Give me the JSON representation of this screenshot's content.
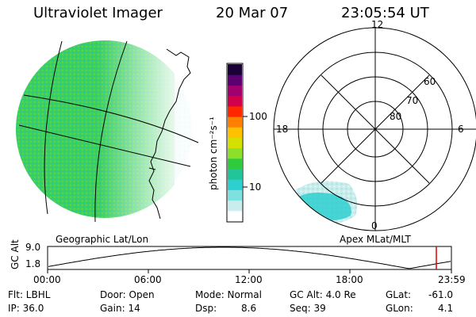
{
  "header": {
    "instrument": "Ultraviolet Imager",
    "date": "20 Mar 07",
    "time": "23:05:54 UT"
  },
  "colorbar": {
    "unit_label": "photon cm⁻²s⁻¹",
    "ticks": [
      "100",
      "10"
    ],
    "colors": [
      "#ffffff",
      "#c9ecec",
      "#7fe0e0",
      "#2ed0cf",
      "#22c59a",
      "#2ecb3c",
      "#8ce02a",
      "#d4e000",
      "#ffc000",
      "#ff7f00",
      "#ff2600",
      "#d2004a",
      "#a1006f",
      "#5a0070",
      "#1b0038"
    ]
  },
  "geo_panel": {
    "label": "Geographic Lat/Lon"
  },
  "apex_panel": {
    "label": "Apex  MLat/MLT",
    "mlt_labels": {
      "top": "12",
      "left": "18",
      "right": "6",
      "bottom": "0"
    },
    "lat_labels": [
      "60",
      "70",
      "80"
    ]
  },
  "altitude_plot": {
    "ylabel": "GC Alt",
    "ytick_top": "9.0",
    "ytick_bottom": "1.8",
    "xticks": [
      "00:00",
      "06:00",
      "12:00",
      "18:00",
      "23:59"
    ],
    "current_marker_color": "#e00000"
  },
  "info": {
    "flt_label": "Flt: LBHL",
    "ip_label": "IP: 36.0",
    "door_label": "Door: Open",
    "gain_label": "Gain: 14",
    "mode_label": "Mode: Normal",
    "dsp_label": "Dsp:",
    "dsp_value": "8.6",
    "gcalt_label": "GC Alt: 4.0 Re",
    "seq_label": "Seq: 39",
    "glat_label": "GLat:",
    "glat_value": "-61.0",
    "glon_label": "GLon:",
    "glon_value": "4.1"
  }
}
